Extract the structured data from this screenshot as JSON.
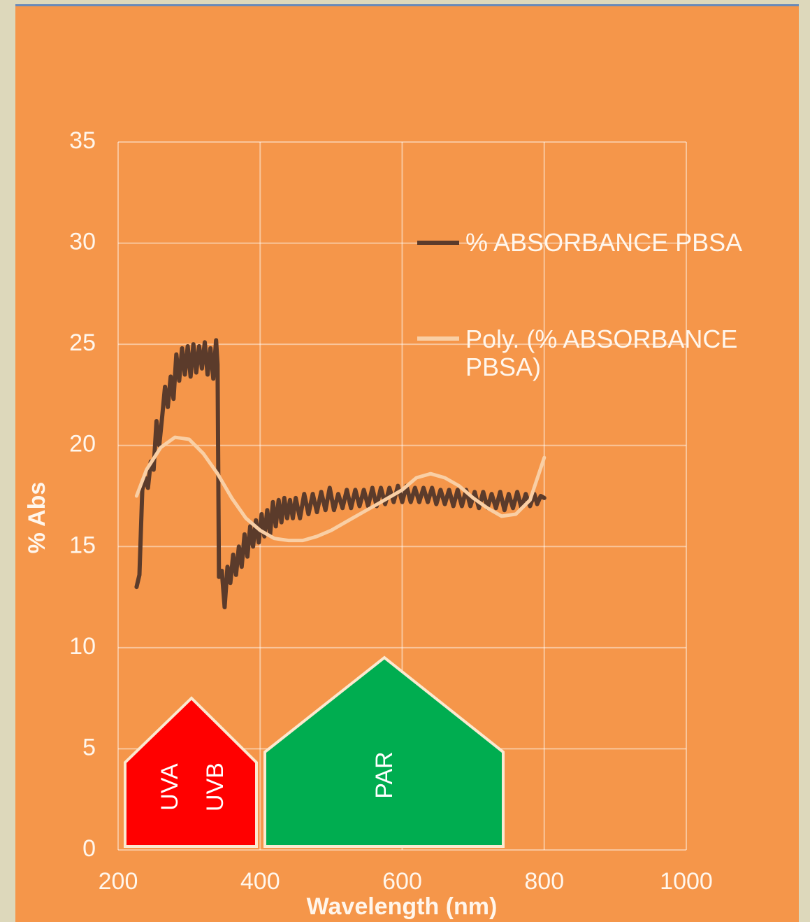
{
  "chart_data": {
    "type": "line",
    "xlabel": "Wavelength (nm)",
    "ylabel": "% Abs",
    "xlim": [
      200,
      1000
    ],
    "xticks": [
      200,
      400,
      600,
      800,
      1000
    ],
    "ylim": [
      0,
      35
    ],
    "yticks": [
      0,
      5,
      10,
      15,
      20,
      25,
      30,
      35
    ],
    "grid": true,
    "legend": "right",
    "annotations": [
      "UVA",
      "UVB",
      "PAR"
    ],
    "series": [
      {
        "name": "% ABSORBANCE PBSA",
        "color": "#5b3b2b",
        "x": [
          226,
          230,
          234,
          238,
          242,
          246,
          250,
          254,
          258,
          262,
          266,
          270,
          274,
          278,
          282,
          286,
          290,
          294,
          298,
          302,
          306,
          310,
          314,
          318,
          322,
          326,
          330,
          334,
          338,
          340,
          342,
          346,
          350,
          354,
          358,
          362,
          366,
          370,
          374,
          378,
          382,
          386,
          390,
          394,
          398,
          402,
          406,
          410,
          414,
          418,
          422,
          426,
          430,
          434,
          438,
          442,
          446,
          450,
          456,
          462,
          468,
          474,
          480,
          486,
          492,
          498,
          504,
          510,
          516,
          522,
          528,
          534,
          540,
          546,
          552,
          558,
          564,
          570,
          576,
          582,
          588,
          594,
          600,
          606,
          612,
          618,
          624,
          630,
          636,
          642,
          648,
          654,
          660,
          666,
          672,
          678,
          684,
          690,
          696,
          702,
          708,
          714,
          720,
          726,
          732,
          738,
          744,
          750,
          756,
          762,
          768,
          774,
          780,
          786,
          790,
          795,
          800
        ],
        "values": [
          13.0,
          13.6,
          17.8,
          18.4,
          17.9,
          19.2,
          18.8,
          21.2,
          20.0,
          21.4,
          22.9,
          21.9,
          23.4,
          22.3,
          24.5,
          23.2,
          24.8,
          23.5,
          24.9,
          23.4,
          25.0,
          23.6,
          24.9,
          23.8,
          25.1,
          23.5,
          24.8,
          23.3,
          25.2,
          24.0,
          13.5,
          13.8,
          12.0,
          14.0,
          13.2,
          14.6,
          13.6,
          15.0,
          14.0,
          15.6,
          14.5,
          16.0,
          15.0,
          16.3,
          15.2,
          16.6,
          15.5,
          16.8,
          15.6,
          17.2,
          16.0,
          17.3,
          16.2,
          17.4,
          16.4,
          17.3,
          16.4,
          17.4,
          16.4,
          17.6,
          16.6,
          17.6,
          16.7,
          17.7,
          16.8,
          17.9,
          16.8,
          17.6,
          16.9,
          17.8,
          16.9,
          17.8,
          17.0,
          17.8,
          17.0,
          17.9,
          17.0,
          17.9,
          17.1,
          17.9,
          17.2,
          18.0,
          17.2,
          18.0,
          17.2,
          17.9,
          17.2,
          17.9,
          17.2,
          17.9,
          17.1,
          17.8,
          17.1,
          17.8,
          17.0,
          17.8,
          17.0,
          17.8,
          17.0,
          17.7,
          16.9,
          17.7,
          16.9,
          17.6,
          16.9,
          17.7,
          16.8,
          17.6,
          16.9,
          17.7,
          16.9,
          17.6,
          17.0,
          17.6,
          17.1,
          17.5,
          17.4
        ]
      },
      {
        "name": "Poly. (% ABSORBANCE PBSA)",
        "color": "#f9cfa5",
        "x": [
          226,
          240,
          260,
          280,
          300,
          320,
          340,
          360,
          380,
          400,
          420,
          440,
          460,
          480,
          500,
          520,
          540,
          560,
          580,
          600,
          620,
          640,
          660,
          680,
          700,
          720,
          740,
          760,
          780,
          800
        ],
        "values": [
          17.5,
          18.8,
          19.9,
          20.4,
          20.3,
          19.6,
          18.6,
          17.4,
          16.4,
          15.8,
          15.4,
          15.3,
          15.3,
          15.5,
          15.8,
          16.2,
          16.6,
          17.0,
          17.4,
          17.8,
          18.4,
          18.6,
          18.4,
          18.0,
          17.4,
          16.9,
          16.5,
          16.6,
          17.3,
          19.4
        ]
      }
    ]
  }
}
